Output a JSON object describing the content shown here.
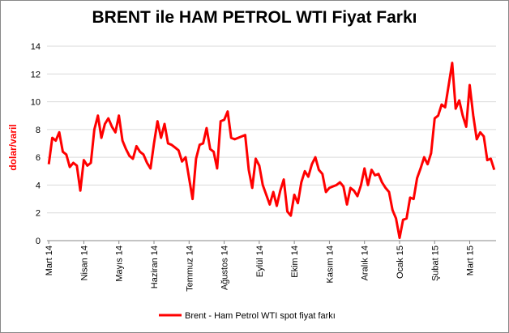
{
  "chart_data": {
    "type": "line",
    "title": "BRENT ile HAM PETROL WTI Fiyat Farkı",
    "y_label": "dolar/varil",
    "categories": [
      "Mart 14",
      null,
      null,
      null,
      null,
      null,
      null,
      null,
      null,
      null,
      "Nisan 14",
      null,
      null,
      null,
      null,
      null,
      null,
      null,
      null,
      null,
      "Mayıs 14",
      null,
      null,
      null,
      null,
      null,
      null,
      null,
      null,
      null,
      "Haziran 14",
      null,
      null,
      null,
      null,
      null,
      null,
      null,
      null,
      null,
      "Temmuz 14",
      null,
      null,
      null,
      null,
      null,
      null,
      null,
      null,
      null,
      "Ağustos 14",
      null,
      null,
      null,
      null,
      null,
      null,
      null,
      null,
      null,
      "Eylül 14",
      null,
      null,
      null,
      null,
      null,
      null,
      null,
      null,
      null,
      "Ekim 14",
      null,
      null,
      null,
      null,
      null,
      null,
      null,
      null,
      null,
      "Kasım 14",
      null,
      null,
      null,
      null,
      null,
      null,
      null,
      null,
      null,
      "Aralık 14",
      null,
      null,
      null,
      null,
      null,
      null,
      null,
      null,
      null,
      "Ocak 15",
      null,
      null,
      null,
      null,
      null,
      null,
      null,
      null,
      null,
      "Şubat 15",
      null,
      null,
      null,
      null,
      null,
      null,
      null,
      null,
      null,
      "Mart 15",
      null,
      null,
      null,
      null,
      null,
      null,
      null
    ],
    "series": [
      {
        "name": "Brent - Ham Petrol WTI spot fiyat farkı",
        "color": "#ff0000",
        "values": [
          5.5,
          7.4,
          7.2,
          7.8,
          6.4,
          6.2,
          5.3,
          5.6,
          5.4,
          3.6,
          5.8,
          5.4,
          5.6,
          8.0,
          9.0,
          7.4,
          8.4,
          8.8,
          8.2,
          7.8,
          9.0,
          7.2,
          6.6,
          6.1,
          5.9,
          6.8,
          6.4,
          6.2,
          5.6,
          5.2,
          7.0,
          8.6,
          7.4,
          8.4,
          7.0,
          6.9,
          6.7,
          6.5,
          5.7,
          6.0,
          4.5,
          3.0,
          5.9,
          6.9,
          7.0,
          8.1,
          6.6,
          6.4,
          5.2,
          8.6,
          8.7,
          9.3,
          7.4,
          7.3,
          7.4,
          7.5,
          7.6,
          5.1,
          3.8,
          5.9,
          5.4,
          4.0,
          3.3,
          2.6,
          3.5,
          2.5,
          3.6,
          4.4,
          2.1,
          1.8,
          3.3,
          2.7,
          4.2,
          5.0,
          4.6,
          5.5,
          6.0,
          5.1,
          4.8,
          3.5,
          3.8,
          3.9,
          4.0,
          4.2,
          3.9,
          2.6,
          3.8,
          3.6,
          3.2,
          4.0,
          5.2,
          4.0,
          5.1,
          4.7,
          4.8,
          4.2,
          3.8,
          3.5,
          2.2,
          1.6,
          0.2,
          1.5,
          1.6,
          3.1,
          3.0,
          4.5,
          5.2,
          6.0,
          5.5,
          6.3,
          8.8,
          9.0,
          9.8,
          9.6,
          11.2,
          12.8,
          9.5,
          10.1,
          9.0,
          8.2,
          11.2,
          9.0,
          7.3,
          7.8,
          7.5,
          5.8,
          5.9,
          5.1
        ]
      }
    ],
    "ylim": [
      0,
      14
    ],
    "yticks": [
      0,
      2,
      4,
      6,
      8,
      10,
      12,
      14
    ],
    "grid": true,
    "legend": "bottom"
  }
}
